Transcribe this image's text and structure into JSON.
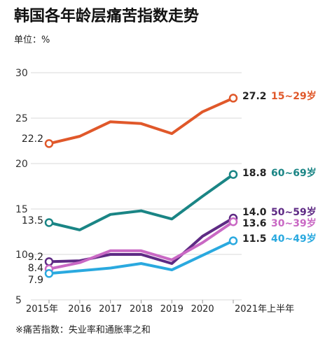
{
  "chart_data": {
    "type": "line",
    "title": "韩国各年龄层痛苦指数走势",
    "unit_label": "单位：%",
    "x": [
      "2015年",
      "2016",
      "2017",
      "2018",
      "2019",
      "2020",
      "2021年上半年"
    ],
    "y_ticks": [
      "30",
      "25",
      "20",
      "15",
      "10",
      "5"
    ],
    "ylim": [
      5,
      30
    ],
    "grid": true,
    "series": [
      {
        "name": "15~29岁",
        "color": "#e0582a",
        "values": [
          22.2,
          23.0,
          24.6,
          24.4,
          23.3,
          25.7,
          27.2
        ],
        "start_label": "22.2",
        "end_label": "27.2"
      },
      {
        "name": "60~69岁",
        "color": "#1a8585",
        "values": [
          13.5,
          12.7,
          14.4,
          14.8,
          13.9,
          16.4,
          18.8
        ],
        "start_label": "13.5",
        "end_label": "18.8"
      },
      {
        "name": "50~59岁",
        "color": "#5e2a84",
        "values": [
          9.2,
          9.3,
          10.0,
          10.0,
          9.0,
          12.0,
          14.0
        ],
        "start_label": "9.2",
        "end_label": "14.0"
      },
      {
        "name": "30~39岁",
        "color": "#c968c4",
        "values": [
          8.4,
          9.1,
          10.4,
          10.4,
          9.4,
          11.3,
          13.6
        ],
        "start_label": "8.4",
        "end_label": "13.6"
      },
      {
        "name": "40~49岁",
        "color": "#2aa9df",
        "values": [
          7.9,
          8.2,
          8.5,
          9.0,
          8.3,
          9.9,
          11.5
        ],
        "start_label": "7.9",
        "end_label": "11.5"
      }
    ],
    "footnote": "※痛苦指数：失业率和通胀率之和"
  }
}
